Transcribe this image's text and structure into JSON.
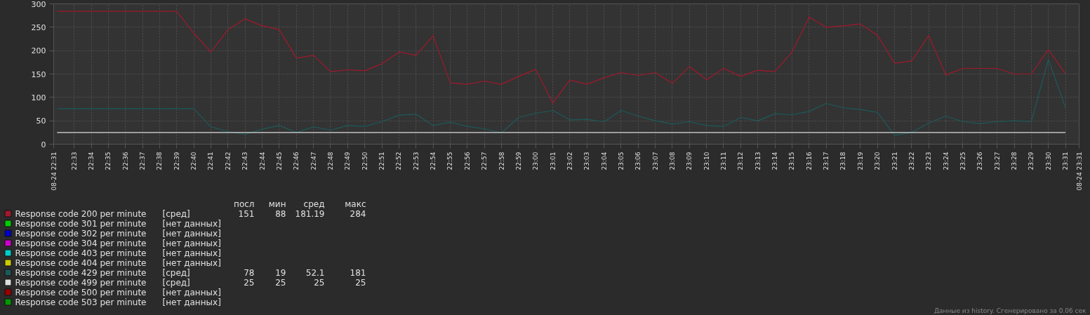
{
  "chart_data": {
    "type": "line",
    "xlim": [
      22.53,
      23.53
    ],
    "xticks": [
      {
        "value": 22.53,
        "label": "08-24 22:31"
      },
      {
        "value": 22.55,
        "label": "22:33"
      },
      {
        "value": 22.5667,
        "label": "22:34"
      },
      {
        "value": 22.5833,
        "label": "22:35"
      },
      {
        "value": 22.6,
        "label": "22:36"
      },
      {
        "value": 22.6167,
        "label": "22:37"
      },
      {
        "value": 22.6333,
        "label": "22:38"
      },
      {
        "value": 22.65,
        "label": "22:39"
      },
      {
        "value": 22.6667,
        "label": "22:40"
      },
      {
        "value": 22.6833,
        "label": "22:41"
      },
      {
        "value": 22.7,
        "label": "22:42"
      },
      {
        "value": 22.7167,
        "label": "22:43"
      },
      {
        "value": 22.7333,
        "label": "22:44"
      },
      {
        "value": 22.75,
        "label": "22:45"
      },
      {
        "value": 22.7667,
        "label": "22:46"
      },
      {
        "value": 22.7833,
        "label": "22:47"
      },
      {
        "value": 22.8,
        "label": "22:48"
      },
      {
        "value": 22.8167,
        "label": "22:49"
      },
      {
        "value": 22.8333,
        "label": "22:50"
      },
      {
        "value": 22.85,
        "label": "22:51"
      },
      {
        "value": 22.8667,
        "label": "22:52"
      },
      {
        "value": 22.8833,
        "label": "22:53"
      },
      {
        "value": 22.9,
        "label": "22:54"
      },
      {
        "value": 22.9167,
        "label": "22:55"
      },
      {
        "value": 22.9333,
        "label": "22:56"
      },
      {
        "value": 22.95,
        "label": "22:57"
      },
      {
        "value": 22.9667,
        "label": "22:58"
      },
      {
        "value": 22.9833,
        "label": "22:59"
      },
      {
        "value": 23.0,
        "label": "23:00"
      },
      {
        "value": 23.0167,
        "label": "23:01"
      },
      {
        "value": 23.0333,
        "label": "23:02"
      },
      {
        "value": 23.05,
        "label": "23:03"
      },
      {
        "value": 23.0667,
        "label": "23:04"
      },
      {
        "value": 23.0833,
        "label": "23:05"
      },
      {
        "value": 23.1,
        "label": "23:06"
      },
      {
        "value": 23.1167,
        "label": "23:07"
      },
      {
        "value": 23.1333,
        "label": "23:08"
      },
      {
        "value": 23.15,
        "label": "23:09"
      },
      {
        "value": 23.1667,
        "label": "23:10"
      },
      {
        "value": 23.1833,
        "label": "23:11"
      },
      {
        "value": 23.2,
        "label": "23:12"
      },
      {
        "value": 23.2167,
        "label": "23:13"
      },
      {
        "value": 23.2333,
        "label": "23:14"
      },
      {
        "value": 23.25,
        "label": "23:15"
      },
      {
        "value": 23.2667,
        "label": "23:16"
      },
      {
        "value": 23.2833,
        "label": "23:17"
      },
      {
        "value": 23.3,
        "label": "23:18"
      },
      {
        "value": 23.3167,
        "label": "23:19"
      },
      {
        "value": 23.3333,
        "label": "23:20"
      },
      {
        "value": 23.35,
        "label": "23:21"
      },
      {
        "value": 23.3667,
        "label": "23:22"
      },
      {
        "value": 23.3833,
        "label": "23:23"
      },
      {
        "value": 23.4,
        "label": "23:24"
      },
      {
        "value": 23.4167,
        "label": "23:25"
      },
      {
        "value": 23.4333,
        "label": "23:26"
      },
      {
        "value": 23.45,
        "label": "23:27"
      },
      {
        "value": 23.4667,
        "label": "23:28"
      },
      {
        "value": 23.4833,
        "label": "23:29"
      },
      {
        "value": 23.5,
        "label": "23:30"
      },
      {
        "value": 23.5167,
        "label": "23:31"
      },
      {
        "value": 23.53,
        "label": "08-24 23:31"
      }
    ],
    "x": [
      22.5333,
      22.55,
      22.5667,
      22.5833,
      22.6,
      22.6167,
      22.6333,
      22.65,
      22.6667,
      22.6833,
      22.7,
      22.7167,
      22.7333,
      22.75,
      22.7667,
      22.7833,
      22.8,
      22.8167,
      22.8333,
      22.85,
      22.8667,
      22.8833,
      22.9,
      22.9167,
      22.9333,
      22.95,
      22.9667,
      22.9833,
      23.0,
      23.0167,
      23.0333,
      23.05,
      23.0667,
      23.0833,
      23.1,
      23.1167,
      23.1333,
      23.15,
      23.1667,
      23.1833,
      23.2,
      23.2167,
      23.2333,
      23.25,
      23.2667,
      23.2833,
      23.3,
      23.3167,
      23.3333,
      23.35,
      23.3667,
      23.3833,
      23.4,
      23.4167,
      23.4333,
      23.45,
      23.4667,
      23.4833,
      23.5,
      23.5167
    ],
    "ylim": [
      0,
      300
    ],
    "yticks": [
      0,
      50,
      100,
      150,
      200,
      250,
      300
    ],
    "grid": true,
    "legend": "bottom",
    "line_style": "solid",
    "series": [
      {
        "name": "Response code 200 per minute",
        "color": "#a0192c",
        "values": [
          284,
          284,
          284,
          284,
          284,
          284,
          284,
          284,
          237,
          197,
          245,
          268,
          253,
          245,
          184,
          190,
          155,
          159,
          157,
          172,
          197,
          190,
          232,
          131,
          128,
          135,
          128,
          145,
          160,
          88,
          137,
          128,
          142,
          153,
          147,
          153,
          130,
          166,
          138,
          162,
          145,
          158,
          155,
          197,
          272,
          250,
          253,
          257,
          233,
          173,
          178,
          232,
          148,
          162,
          162,
          162,
          150,
          150,
          202,
          151
        ]
      },
      {
        "name": "Response code 301 per minute",
        "color": "#00cc00",
        "values": [
          null,
          null,
          null,
          null,
          null,
          null,
          null,
          null,
          null,
          null,
          null,
          null,
          null,
          null,
          null,
          null,
          null,
          null,
          null,
          null,
          null,
          null,
          null,
          null,
          null,
          null,
          null,
          null,
          null,
          null,
          null,
          null,
          null,
          null,
          null,
          null,
          null,
          null,
          null,
          null,
          null,
          null,
          null,
          null,
          null,
          null,
          null,
          null,
          null,
          null,
          null,
          null,
          null,
          null,
          null,
          null,
          null,
          null,
          null,
          null
        ]
      },
      {
        "name": "Response code 302 per minute",
        "color": "#0000cc",
        "values": [
          null,
          null,
          null,
          null,
          null,
          null,
          null,
          null,
          null,
          null,
          null,
          null,
          null,
          null,
          null,
          null,
          null,
          null,
          null,
          null,
          null,
          null,
          null,
          null,
          null,
          null,
          null,
          null,
          null,
          null,
          null,
          null,
          null,
          null,
          null,
          null,
          null,
          null,
          null,
          null,
          null,
          null,
          null,
          null,
          null,
          null,
          null,
          null,
          null,
          null,
          null,
          null,
          null,
          null,
          null,
          null,
          null,
          null,
          null,
          null
        ]
      },
      {
        "name": "Response code 304 per minute",
        "color": "#cc00cc",
        "values": [
          null,
          null,
          null,
          null,
          null,
          null,
          null,
          null,
          null,
          null,
          null,
          null,
          null,
          null,
          null,
          null,
          null,
          null,
          null,
          null,
          null,
          null,
          null,
          null,
          null,
          null,
          null,
          null,
          null,
          null,
          null,
          null,
          null,
          null,
          null,
          null,
          null,
          null,
          null,
          null,
          null,
          null,
          null,
          null,
          null,
          null,
          null,
          null,
          null,
          null,
          null,
          null,
          null,
          null,
          null,
          null,
          null,
          null,
          null,
          null
        ]
      },
      {
        "name": "Response code 403 per minute",
        "color": "#00cccc",
        "values": [
          null,
          null,
          null,
          null,
          null,
          null,
          null,
          null,
          null,
          null,
          null,
          null,
          null,
          null,
          null,
          null,
          null,
          null,
          null,
          null,
          null,
          null,
          null,
          null,
          null,
          null,
          null,
          null,
          null,
          null,
          null,
          null,
          null,
          null,
          null,
          null,
          null,
          null,
          null,
          null,
          null,
          null,
          null,
          null,
          null,
          null,
          null,
          null,
          null,
          null,
          null,
          null,
          null,
          null,
          null,
          null,
          null,
          null,
          null,
          null
        ]
      },
      {
        "name": "Response code 404 per minute",
        "color": "#cccc00",
        "values": [
          null,
          null,
          null,
          null,
          null,
          null,
          null,
          null,
          null,
          null,
          null,
          null,
          null,
          null,
          null,
          null,
          null,
          null,
          null,
          null,
          null,
          null,
          null,
          null,
          null,
          null,
          null,
          null,
          null,
          null,
          null,
          null,
          null,
          null,
          null,
          null,
          null,
          null,
          null,
          null,
          null,
          null,
          null,
          null,
          null,
          null,
          null,
          null,
          null,
          null,
          null,
          null,
          null,
          null,
          null,
          null,
          null,
          null,
          null,
          null
        ]
      },
      {
        "name": "Response code 429 per minute",
        "color": "#1d5a5a",
        "values": [
          76,
          76,
          76,
          76,
          76,
          76,
          76,
          76,
          76,
          37,
          27,
          21,
          32,
          40,
          25,
          37,
          30,
          40,
          38,
          48,
          62,
          64,
          40,
          47,
          38,
          33,
          24,
          57,
          66,
          72,
          52,
          53,
          48,
          72,
          60,
          50,
          43,
          48,
          40,
          38,
          57,
          50,
          65,
          63,
          70,
          87,
          78,
          74,
          68,
          19,
          25,
          45,
          60,
          48,
          44,
          48,
          50,
          48,
          181,
          78
        ]
      },
      {
        "name": "Response code 499 per minute",
        "color": "#dddddd",
        "values": [
          25,
          25,
          25,
          25,
          25,
          25,
          25,
          25,
          25,
          25,
          25,
          25,
          25,
          25,
          25,
          25,
          25,
          25,
          25,
          25,
          25,
          25,
          25,
          25,
          25,
          25,
          25,
          25,
          25,
          25,
          25,
          25,
          25,
          25,
          25,
          25,
          25,
          25,
          25,
          25,
          25,
          25,
          25,
          25,
          25,
          25,
          25,
          25,
          25,
          25,
          25,
          25,
          25,
          25,
          25,
          25,
          25,
          25,
          25,
          25
        ]
      },
      {
        "name": "Response code 500 per minute",
        "color": "#990000",
        "values": [
          null,
          null,
          null,
          null,
          null,
          null,
          null,
          null,
          null,
          null,
          null,
          null,
          null,
          null,
          null,
          null,
          null,
          null,
          null,
          null,
          null,
          null,
          null,
          null,
          null,
          null,
          null,
          null,
          null,
          null,
          null,
          null,
          null,
          null,
          null,
          null,
          null,
          null,
          null,
          null,
          null,
          null,
          null,
          null,
          null,
          null,
          null,
          null,
          null,
          null,
          null,
          null,
          null,
          null,
          null,
          null,
          null,
          null,
          null,
          null
        ]
      },
      {
        "name": "Response code 503 per minute",
        "color": "#009900",
        "values": [
          null,
          null,
          null,
          null,
          null,
          null,
          null,
          null,
          null,
          null,
          null,
          null,
          null,
          null,
          null,
          null,
          null,
          null,
          null,
          null,
          null,
          null,
          null,
          null,
          null,
          null,
          null,
          null,
          null,
          null,
          null,
          null,
          null,
          null,
          null,
          null,
          null,
          null,
          null,
          null,
          null,
          null,
          null,
          null,
          null,
          null,
          null,
          null,
          null,
          null,
          null,
          null,
          null,
          null,
          null,
          null,
          null,
          null,
          null,
          null
        ]
      }
    ],
    "annotations": [
      "посл\tмин\tсред\tмакс",
      "[сред]\t151\t88\t181.19\t284",
      "[нет данных]",
      "[нет данных]",
      "[нет данных]",
      "[нет данных]",
      "[нет данных]",
      "[сред]\t78\t19\t52.1\t181",
      "[сред]\t25\t25\t25\t25",
      "[нет данных]",
      "[нет данных]",
      "Данные из history. Сгенерировано за 0.06 сек"
    ]
  }
}
